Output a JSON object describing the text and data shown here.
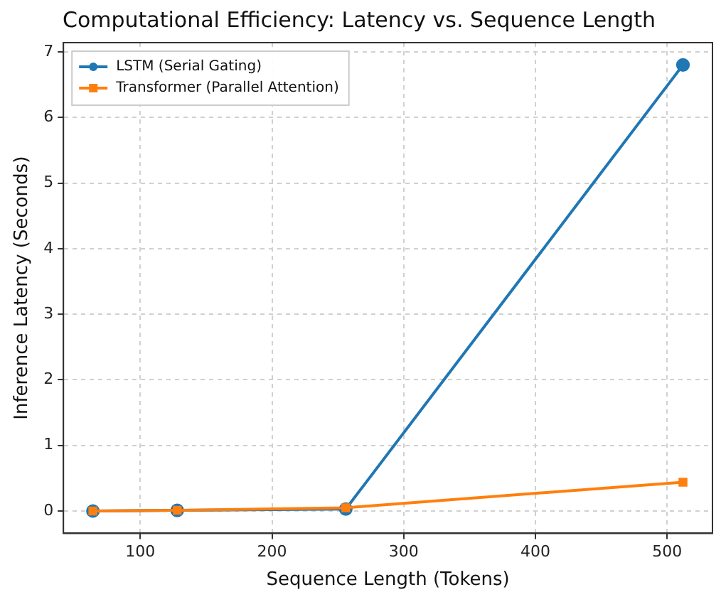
{
  "chart_data": {
    "type": "line",
    "title": "Computational Efficiency: Latency vs. Sequence Length",
    "xlabel": "Sequence Length (Tokens)",
    "ylabel": "Inference Latency (Seconds)",
    "x": [
      64,
      128,
      256,
      512
    ],
    "series": [
      {
        "name": "LSTM (Serial Gating)",
        "color": "#1f77b4",
        "marker": "circle",
        "values": [
          0,
          0.01,
          0.03,
          6.8
        ]
      },
      {
        "name": "Transformer (Parallel Attention)",
        "color": "#ff7f0e",
        "marker": "square",
        "values": [
          0,
          0.01,
          0.05,
          0.44
        ]
      }
    ],
    "xlim": [
      41.6,
      534.4
    ],
    "xticks": [
      100,
      200,
      300,
      400,
      500
    ],
    "ylim": [
      -0.34,
      7.14
    ],
    "yticks": [
      0,
      1,
      2,
      3,
      4,
      5,
      6,
      7
    ],
    "grid": true,
    "legend": "top left"
  }
}
